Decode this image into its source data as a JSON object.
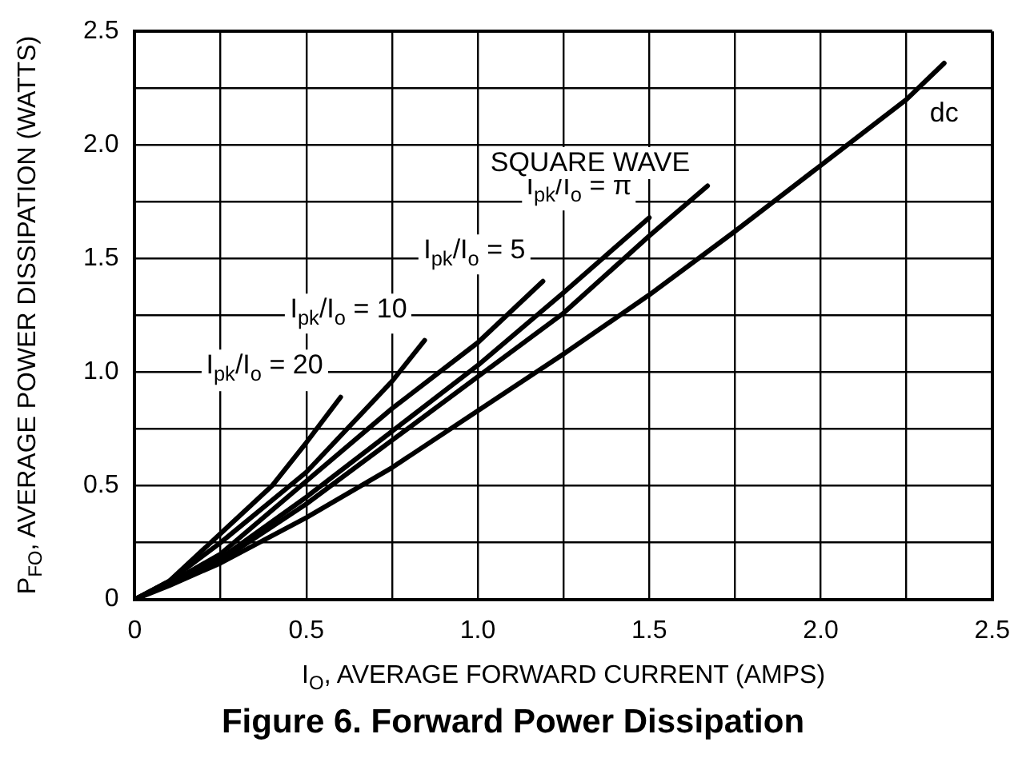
{
  "chart_data": {
    "type": "line",
    "title": "Figure 6. Forward Power Dissipation",
    "xlabel": "I$_{O}$, AVERAGE FORWARD CURRENT (AMPS)",
    "ylabel": "P$_{FO}$, AVERAGE POWER DISSIPATION (WATTS)",
    "xlim": [
      0,
      2.5
    ],
    "ylim": [
      0,
      2.5
    ],
    "xticks": [
      0,
      {
        "value": 0.25,
        "label": null
      },
      0.5,
      {
        "value": 0.75,
        "label": null
      },
      {
        "value": 1,
        "label": "1.0"
      },
      {
        "value": 1.25,
        "label": null
      },
      1.5,
      {
        "value": 1.75,
        "label": null
      },
      {
        "value": 2,
        "label": "2.0"
      },
      {
        "value": 2.25,
        "label": null
      },
      2.5
    ],
    "yticks": [
      0,
      {
        "value": 0.25,
        "label": null
      },
      0.5,
      {
        "value": 0.75,
        "label": null
      },
      {
        "value": 1,
        "label": "1.0"
      },
      {
        "value": 1.25,
        "label": null
      },
      1.5,
      {
        "value": 1.75,
        "label": null
      },
      {
        "value": 2,
        "label": "2.0"
      },
      {
        "value": 2.25,
        "label": null
      },
      2.5
    ],
    "grid": true,
    "legend": false,
    "marker": "none",
    "line_style": "solid",
    "series": [
      {
        "name": "I$_{pk}$/I$_{o}$ = 20",
        "color": "#000000",
        "x": [
          0,
          0.1,
          0.25,
          0.4,
          0.5,
          0.6
        ],
        "values": [
          0,
          0.08,
          0.29,
          0.5,
          0.69,
          0.89
        ]
      },
      {
        "name": "I$_{pk}$/I$_{o}$ = 10",
        "color": "#000000",
        "x": [
          0,
          0.1,
          0.25,
          0.5,
          0.75,
          0.845
        ],
        "values": [
          0,
          0.08,
          0.25,
          0.56,
          0.96,
          1.14
        ]
      },
      {
        "name": "I$_{pk}$/I$_{o}$ = 5",
        "color": "#000000",
        "x": [
          0,
          0.1,
          0.25,
          0.5,
          0.75,
          1.0,
          1.19
        ],
        "values": [
          0,
          0.07,
          0.2,
          0.52,
          0.84,
          1.13,
          1.4
        ]
      },
      {
        "name": "I$_{pk}$/I$_{o}$ = π",
        "color": "#000000",
        "x": [
          0,
          0.1,
          0.25,
          0.5,
          0.75,
          1.0,
          1.25,
          1.5
        ],
        "values": [
          0,
          0.07,
          0.18,
          0.45,
          0.74,
          1.03,
          1.35,
          1.68
        ]
      },
      {
        "name": "SQUARE WAVE",
        "color": "#000000",
        "x": [
          0,
          0.1,
          0.25,
          0.5,
          0.75,
          1.0,
          1.25,
          1.5,
          1.67
        ],
        "values": [
          0,
          0.07,
          0.17,
          0.42,
          0.7,
          0.98,
          1.26,
          1.6,
          1.82
        ]
      },
      {
        "name": "dc",
        "color": "#000000",
        "x": [
          0,
          0.1,
          0.25,
          0.5,
          0.75,
          1.0,
          1.25,
          1.5,
          1.75,
          2.0,
          2.25,
          2.36
        ],
        "values": [
          0,
          0.06,
          0.16,
          0.36,
          0.58,
          0.83,
          1.08,
          1.34,
          1.62,
          1.91,
          2.2,
          2.36
        ]
      }
    ]
  }
}
